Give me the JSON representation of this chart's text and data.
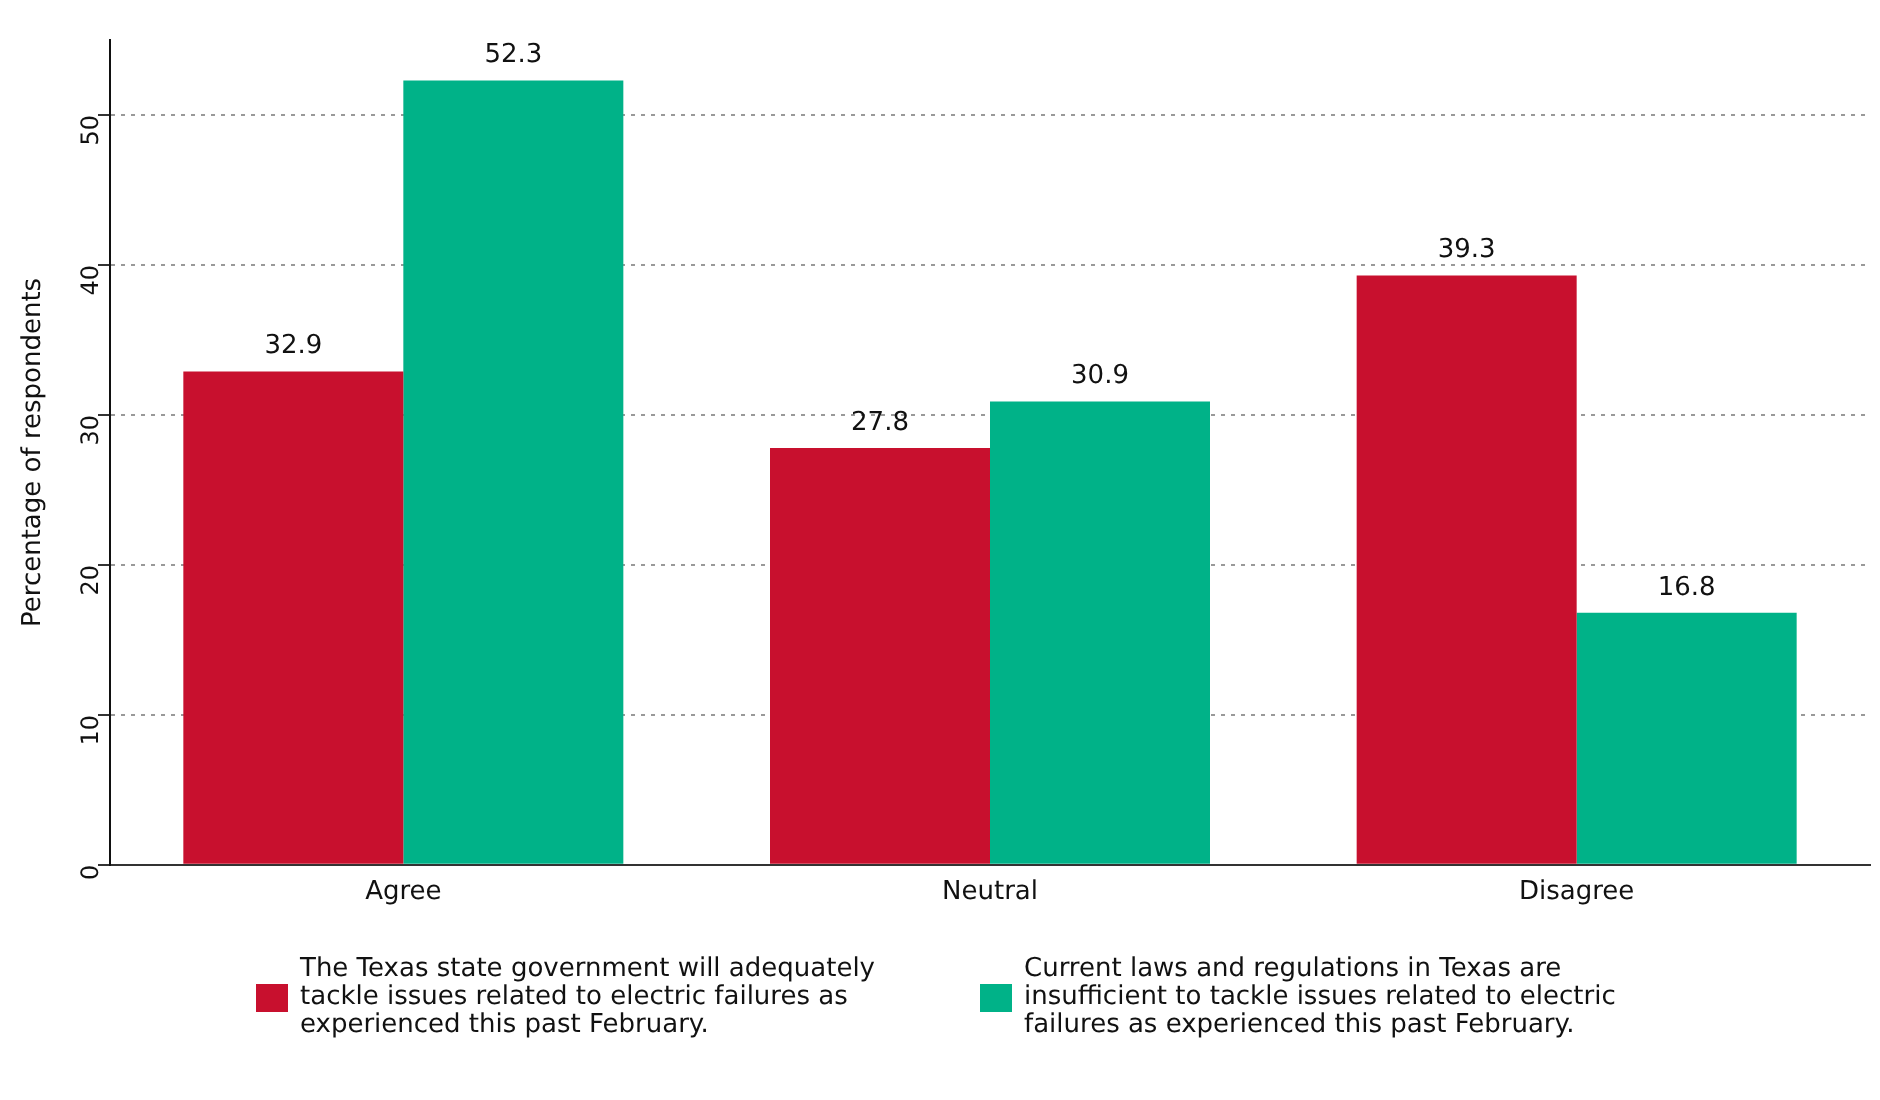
{
  "chart_data": {
    "type": "bar",
    "ylabel": "Percentage of respondents",
    "categories": [
      "Agree",
      "Neutral",
      "Disagree"
    ],
    "series": [
      {
        "name": "The Texas state government will adequately tackle issues related to electric failures as experienced this past February.",
        "color": "#c8102e",
        "values": [
          32.9,
          27.8,
          39.3
        ]
      },
      {
        "name": "Current laws and regulations in Texas are insufficient to tackle issues related to electric failures as experienced this past February.",
        "color": "#00b288",
        "values": [
          52.3,
          30.9,
          16.8
        ]
      }
    ],
    "ylim": [
      0,
      55
    ],
    "yticks": [
      0,
      10,
      20,
      30,
      40,
      50
    ],
    "grid": "y",
    "legend": "bottom",
    "data_labels": true
  }
}
